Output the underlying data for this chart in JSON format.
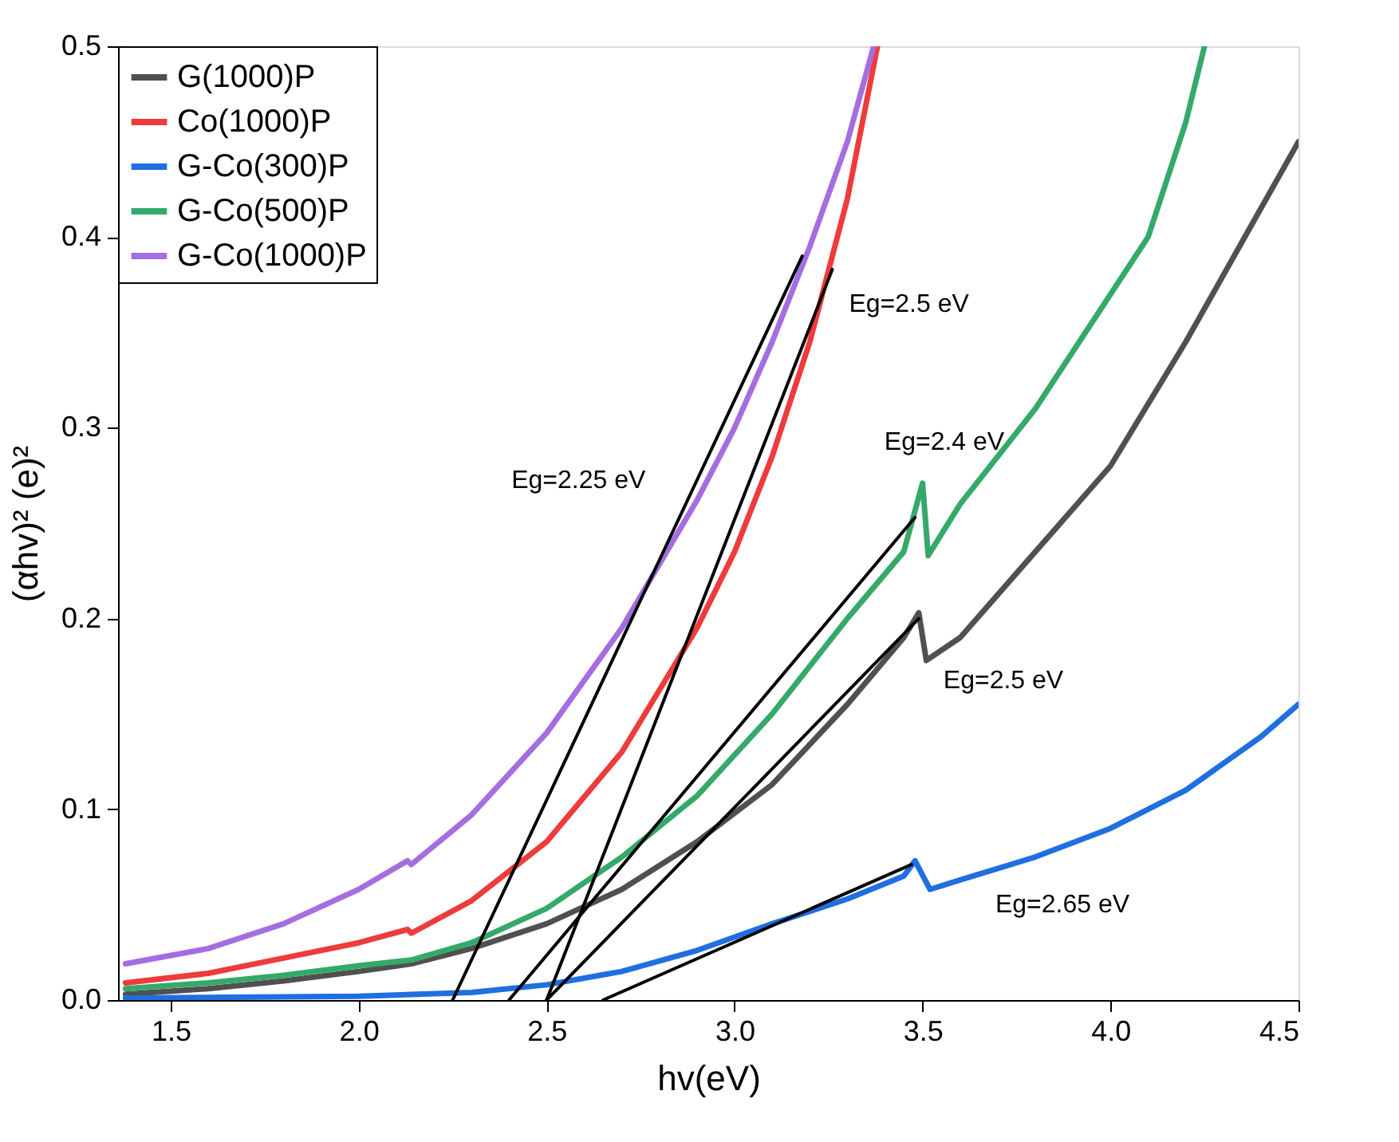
{
  "chart_data": {
    "type": "line",
    "xlabel": "hv(eV)",
    "ylabel": "(αhv)² (e)²",
    "legend": "top left",
    "grid": false,
    "line_style": "solid",
    "marker": "none",
    "xlim": [
      1.36,
      4.5
    ],
    "ylim": [
      0,
      0.5
    ],
    "xticks": [
      1.5,
      {
        "value": 2.0,
        "label": "2.0"
      },
      2.5,
      {
        "value": 3.0,
        "label": "3.0"
      },
      3.5,
      {
        "value": 4.0,
        "label": "4.0"
      },
      4.5
    ],
    "yticks": [
      {
        "value": 0,
        "label": "0.0"
      },
      0.1,
      0.2,
      0.3,
      0.4,
      0.5
    ],
    "series": [
      {
        "name": "G(1000)P",
        "color": "#505050",
        "x": [
          1.38,
          1.6,
          1.8,
          2.0,
          2.14,
          2.3,
          2.5,
          2.7,
          2.9,
          3.1,
          3.3,
          3.45,
          3.49,
          3.51,
          3.6,
          3.8,
          4.0,
          4.2,
          4.4,
          4.5
        ],
        "values": [
          0.003,
          0.006,
          0.01,
          0.015,
          0.019,
          0.027,
          0.04,
          0.058,
          0.083,
          0.113,
          0.155,
          0.19,
          0.203,
          0.178,
          0.19,
          0.235,
          0.28,
          0.345,
          0.415,
          0.45
        ]
      },
      {
        "name": "Co(1000)P",
        "color": "#ee3b3b",
        "x": [
          1.38,
          1.6,
          1.8,
          2.0,
          2.13,
          2.14,
          2.3,
          2.5,
          2.7,
          2.9,
          3.0,
          3.1,
          3.2,
          3.3,
          3.38
        ],
        "values": [
          0.009,
          0.014,
          0.022,
          0.03,
          0.037,
          0.035,
          0.052,
          0.083,
          0.13,
          0.195,
          0.235,
          0.285,
          0.345,
          0.42,
          0.5
        ]
      },
      {
        "name": "G-Co(300)P",
        "color": "#1f6fe0",
        "x": [
          1.38,
          2.0,
          2.3,
          2.5,
          2.7,
          2.9,
          3.1,
          3.3,
          3.45,
          3.48,
          3.52,
          3.6,
          3.8,
          4.0,
          4.2,
          4.4,
          4.5
        ],
        "values": [
          0.001,
          0.002,
          0.004,
          0.008,
          0.015,
          0.026,
          0.04,
          0.053,
          0.065,
          0.073,
          0.058,
          0.063,
          0.075,
          0.09,
          0.11,
          0.138,
          0.155
        ]
      },
      {
        "name": "G-Co(500)P",
        "color": "#35a96a",
        "x": [
          1.38,
          1.6,
          1.8,
          2.0,
          2.14,
          2.3,
          2.5,
          2.7,
          2.9,
          3.1,
          3.3,
          3.45,
          3.5,
          3.515,
          3.6,
          3.8,
          4.0,
          4.1,
          4.2,
          4.25
        ],
        "values": [
          0.006,
          0.009,
          0.013,
          0.018,
          0.021,
          0.03,
          0.048,
          0.075,
          0.107,
          0.15,
          0.2,
          0.235,
          0.271,
          0.233,
          0.26,
          0.31,
          0.37,
          0.4,
          0.46,
          0.5
        ]
      },
      {
        "name": "G-Co(1000)P",
        "color": "#a56ee0",
        "x": [
          1.38,
          1.6,
          1.8,
          2.0,
          2.13,
          2.14,
          2.3,
          2.5,
          2.7,
          2.9,
          3.0,
          3.1,
          3.2,
          3.3,
          3.37
        ],
        "values": [
          0.019,
          0.027,
          0.04,
          0.058,
          0.073,
          0.071,
          0.097,
          0.14,
          0.195,
          0.262,
          0.3,
          0.345,
          0.395,
          0.45,
          0.5
        ]
      },
      {
        "color": "#000000",
        "x": [
          2.25,
          3.18
        ],
        "values": [
          0,
          0.39
        ]
      },
      {
        "color": "#000000",
        "x": [
          2.5,
          3.26
        ],
        "values": [
          0,
          0.383
        ]
      },
      {
        "color": "#000000",
        "x": [
          2.4,
          3.48
        ],
        "values": [
          0,
          0.253
        ]
      },
      {
        "color": "#000000",
        "x": [
          2.5,
          3.49
        ],
        "values": [
          0,
          0.2
        ]
      },
      {
        "color": "#000000",
        "x": [
          2.65,
          3.47
        ],
        "values": [
          0,
          0.071
        ]
      }
    ],
    "annotations": [
      "Eg=2.25 eV",
      "Eg=2.5 eV",
      "Eg=2.4 eV",
      "Eg=2.5 eV",
      "Eg=2.65 eV"
    ]
  }
}
